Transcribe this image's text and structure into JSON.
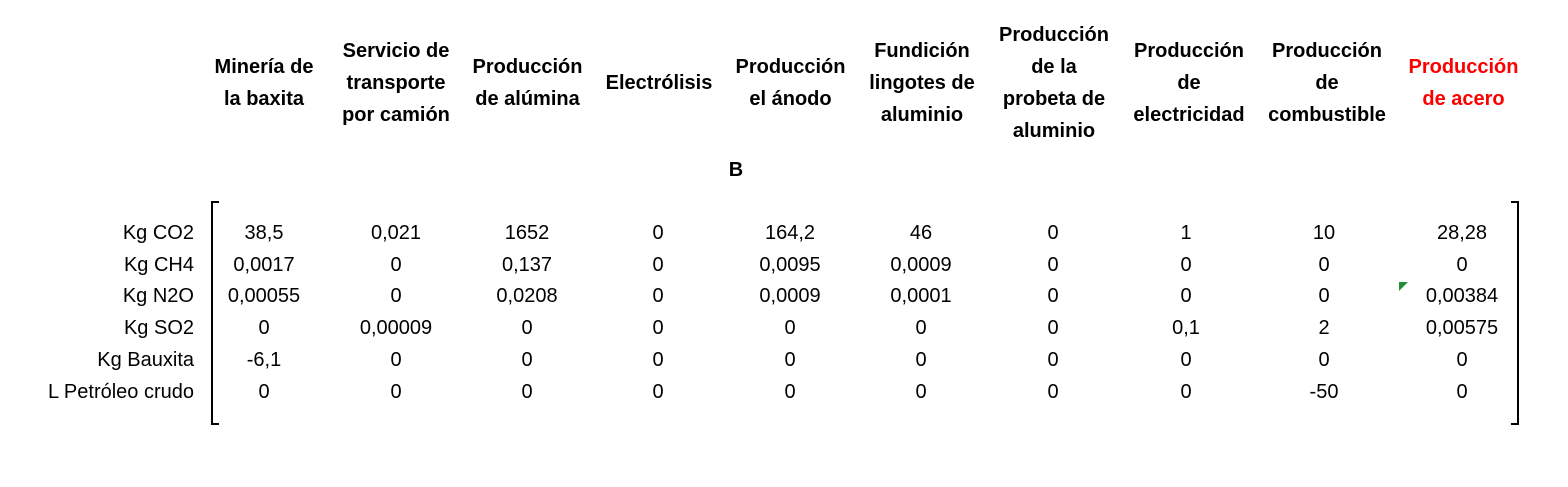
{
  "matrix_label": "B",
  "columns": [
    {
      "label": "Minería de\nla baxita",
      "highlight": false
    },
    {
      "label": "Servicio de\ntransporte\npor camión",
      "highlight": false
    },
    {
      "label": "Producción\nde alúmina",
      "highlight": false
    },
    {
      "label": "Electrólisis",
      "highlight": false
    },
    {
      "label": "Producción\nel ánodo",
      "highlight": false
    },
    {
      "label": "Fundición\nlingotes de\naluminio",
      "highlight": false
    },
    {
      "label": "Producción\nde la\nprobeta de\naluminio",
      "highlight": false
    },
    {
      "label": "Producción\nde\nelectricidad",
      "highlight": false
    },
    {
      "label": "Producción\nde\ncombustible",
      "highlight": false
    },
    {
      "label": "Producción\nde acero",
      "highlight": true
    }
  ],
  "rows": [
    {
      "label": "Kg CO2",
      "values": [
        "38,5",
        "0,021",
        "1652",
        "0",
        "164,2",
        "46",
        "0",
        "1",
        "10",
        "28,28"
      ]
    },
    {
      "label": "Kg CH4",
      "values": [
        "0,0017",
        "0",
        "0,137",
        "0",
        "0,0095",
        "0,0009",
        "0",
        "0",
        "0",
        "0"
      ]
    },
    {
      "label": "Kg N2O",
      "values": [
        "0,00055",
        "0",
        "0,0208",
        "0",
        "0,0009",
        "0,0001",
        "0",
        "0",
        "0",
        "0,00384"
      ]
    },
    {
      "label": "Kg SO2",
      "values": [
        "0",
        "0,00009",
        "0",
        "0",
        "0",
        "0",
        "0",
        "0,1",
        "2",
        "0,00575"
      ]
    },
    {
      "label": "Kg Bauxita",
      "values": [
        "-6,1",
        "0",
        "0",
        "0",
        "0",
        "0",
        "0",
        "0",
        "0",
        "0"
      ]
    },
    {
      "label": "L Petróleo crudo",
      "values": [
        "0",
        "0",
        "0",
        "0",
        "0",
        "0",
        "0",
        "0",
        "-50",
        "0"
      ]
    }
  ],
  "colors": {
    "highlight_header": "#ff0000",
    "comment_marker": "#1f8f3a"
  }
}
